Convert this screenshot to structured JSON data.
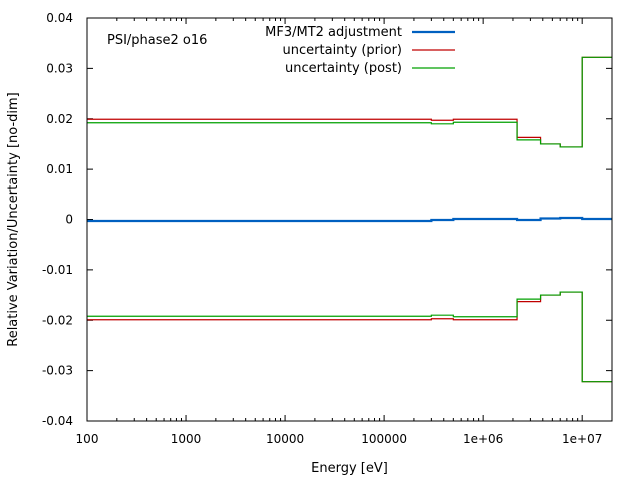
{
  "chart_data": {
    "type": "line",
    "annotation": "PSI/phase2 o16",
    "xlabel": "Energy [eV]",
    "ylabel": "Relative Variation/Uncertainty [no-dim]",
    "xscale": "log",
    "xlim": [
      100,
      20000000
    ],
    "ylim": [
      -0.04,
      0.04
    ],
    "x_ticks": [
      {
        "value": 100,
        "label": "100"
      },
      {
        "value": 1000,
        "label": "1000"
      },
      {
        "value": 10000,
        "label": "10000"
      },
      {
        "value": 100000,
        "label": "100000"
      },
      {
        "value": 1000000,
        "label": "1e+06"
      },
      {
        "value": 10000000,
        "label": "1e+07"
      }
    ],
    "y_ticks": [
      {
        "value": 0.04,
        "label": "0.04"
      },
      {
        "value": 0.03,
        "label": "0.03"
      },
      {
        "value": 0.02,
        "label": "0.02"
      },
      {
        "value": 0.01,
        "label": "0.01"
      },
      {
        "value": 0,
        "label": "0"
      },
      {
        "value": -0.01,
        "label": "-0.01"
      },
      {
        "value": -0.02,
        "label": "-0.02"
      },
      {
        "value": -0.03,
        "label": "-0.03"
      },
      {
        "value": -0.04,
        "label": "-0.04"
      }
    ],
    "legend_position": "top-right",
    "series": [
      {
        "name": "MF3/MT2 adjustment",
        "color": "#0060c0",
        "style": "thick",
        "x": [
          100,
          300000,
          500000,
          1400000,
          2200000,
          3800000,
          6000000,
          10000000,
          20000000
        ],
        "y": [
          -0.0003,
          -0.0001,
          0.0001,
          0.0001,
          -0.0001,
          0.0002,
          0.0003,
          0.0001,
          0.0001
        ]
      },
      {
        "name": "uncertainty (prior)",
        "color": "#c00000",
        "style": "step",
        "x": [
          100,
          300000,
          500000,
          2200000,
          3800000,
          6000000,
          10000000,
          20000000
        ],
        "y": [
          0.0199,
          0.0197,
          0.0199,
          0.0163,
          0.015,
          0.0144,
          0.0322,
          0.0322
        ]
      },
      {
        "name": "uncertainty (post)",
        "color": "#00a000",
        "style": "step",
        "x": [
          100,
          300000,
          500000,
          2200000,
          3800000,
          6000000,
          10000000,
          20000000
        ],
        "y": [
          0.0192,
          0.019,
          0.0193,
          0.0158,
          0.015,
          0.0144,
          0.0322,
          0.0322
        ]
      },
      {
        "name": "",
        "color": "#c00000",
        "style": "step",
        "x": [
          100,
          300000,
          500000,
          2200000,
          3800000,
          6000000,
          10000000,
          20000000
        ],
        "y": [
          -0.0199,
          -0.0197,
          -0.0199,
          -0.0163,
          -0.015,
          -0.0144,
          -0.0322,
          -0.0322
        ]
      },
      {
        "name": "",
        "color": "#00a000",
        "style": "step",
        "x": [
          100,
          300000,
          500000,
          2200000,
          3800000,
          6000000,
          10000000,
          20000000
        ],
        "y": [
          -0.0192,
          -0.019,
          -0.0193,
          -0.0158,
          -0.015,
          -0.0144,
          -0.0322,
          -0.0322
        ]
      }
    ]
  }
}
